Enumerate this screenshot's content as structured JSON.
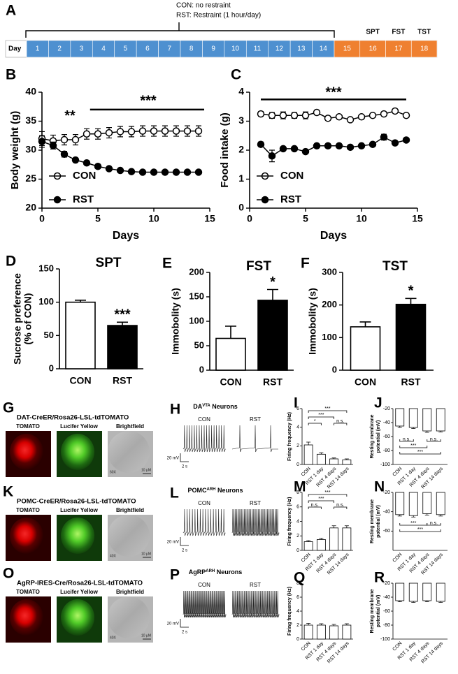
{
  "timeline": {
    "label": "A",
    "legend": [
      "CON: no restraint",
      "RST: Restraint (1 hour/day)"
    ],
    "day_label": "Day",
    "days": [
      1,
      2,
      3,
      4,
      5,
      6,
      7,
      8,
      9,
      10,
      11,
      12,
      13,
      14,
      15,
      16,
      17,
      18
    ],
    "tests": [
      "SPT",
      "FST",
      "TST"
    ]
  },
  "chart_data": [
    {
      "type": "line",
      "label": "B",
      "xlabel": "Days",
      "ylabel": "Body weight (g)",
      "legend": "lower left",
      "x": [
        0,
        1,
        2,
        3,
        4,
        5,
        6,
        7,
        8,
        9,
        10,
        11,
        12,
        13,
        14
      ],
      "xlim": [
        0,
        15
      ],
      "xticks": [
        0,
        5,
        10,
        15
      ],
      "ylim": [
        20,
        40
      ],
      "yticks": [
        20,
        25,
        30,
        35,
        40
      ],
      "series": [
        {
          "name": "CON",
          "marker": "open",
          "color": "#000000",
          "values": [
            32,
            31.6,
            31.8,
            31.8,
            32.8,
            32.8,
            33,
            33.2,
            33.2,
            33.3,
            33.3,
            33.3,
            33.3,
            33.3,
            33.3
          ],
          "errors": [
            1.2,
            1,
            0.9,
            0.9,
            0.9,
            0.9,
            0.9,
            0.9,
            0.9,
            0.9,
            0.9,
            0.9,
            0.9,
            0.9,
            0.9
          ]
        },
        {
          "name": "RST",
          "marker": "filled",
          "color": "#000000",
          "values": [
            31.5,
            30.8,
            29.3,
            28.3,
            27.8,
            27.2,
            26.8,
            26.5,
            26.3,
            26.2,
            26.2,
            26.2,
            26.2,
            26.2,
            26.2
          ],
          "errors": [
            1,
            0.6,
            0.5,
            0.3,
            0.3,
            0.3,
            0.3,
            0.3,
            0.3,
            0.3,
            0.3,
            0.3,
            0.3,
            0.3,
            0.3
          ]
        }
      ],
      "annotations": [
        "**",
        "***"
      ]
    },
    {
      "type": "line",
      "label": "C",
      "xlabel": "Days",
      "ylabel": "Food intake (g)",
      "legend": "lower left",
      "x": [
        1,
        2,
        3,
        4,
        5,
        6,
        7,
        8,
        9,
        10,
        11,
        12,
        13,
        14
      ],
      "xlim": [
        0,
        15
      ],
      "xticks": [
        0,
        5,
        10,
        15
      ],
      "ylim": [
        0,
        4
      ],
      "yticks": [
        0,
        1,
        2,
        3,
        4
      ],
      "series": [
        {
          "name": "CON",
          "marker": "open",
          "color": "#000000",
          "values": [
            3.25,
            3.2,
            3.2,
            3.2,
            3.2,
            3.3,
            3.1,
            3.15,
            3.05,
            3.15,
            3.2,
            3.25,
            3.35,
            3.2
          ],
          "errors": [
            0.08,
            0.1,
            0.12,
            0.1,
            0.12,
            0.08,
            0.05,
            0.05,
            0.05,
            0.05,
            0.05,
            0.05,
            0.05,
            0.05
          ]
        },
        {
          "name": "RST",
          "marker": "filled",
          "color": "#000000",
          "values": [
            2.2,
            1.8,
            2.05,
            2.05,
            1.95,
            2.15,
            2.15,
            2.15,
            2.1,
            2.15,
            2.2,
            2.45,
            2.25,
            2.35
          ],
          "errors": [
            0.08,
            0.2,
            0.05,
            0.05,
            0.05,
            0.05,
            0.05,
            0.05,
            0.05,
            0.05,
            0.05,
            0.1,
            0.05,
            0.05
          ]
        }
      ],
      "annotations": [
        "***"
      ]
    },
    {
      "type": "bar",
      "label": "D",
      "title": "SPT",
      "ylabel": [
        "Sucrose preference",
        "(% of CON)"
      ],
      "categories": [
        "CON",
        "RST"
      ],
      "values": [
        100,
        65
      ],
      "errors": [
        3,
        5
      ],
      "colors": [
        "#ffffff",
        "#000000"
      ],
      "ylim": [
        0,
        150
      ],
      "yticks": [
        0,
        50,
        100,
        150
      ],
      "annotations": [
        "***"
      ]
    },
    {
      "type": "bar",
      "label": "E",
      "title": "FST",
      "ylabel": "Immobolity (s)",
      "categories": [
        "CON",
        "RST"
      ],
      "values": [
        65,
        143
      ],
      "errors": [
        25,
        22
      ],
      "colors": [
        "#ffffff",
        "#000000"
      ],
      "ylim": [
        0,
        200
      ],
      "yticks": [
        0,
        50,
        100,
        150,
        200
      ],
      "annotations": [
        "*"
      ]
    },
    {
      "type": "bar",
      "label": "F",
      "title": "TST",
      "ylabel": "Immobolity (s)",
      "categories": [
        "CON",
        "RST"
      ],
      "values": [
        133,
        202
      ],
      "errors": [
        15,
        18
      ],
      "colors": [
        "#ffffff",
        "#000000"
      ],
      "ylim": [
        0,
        300
      ],
      "yticks": [
        0,
        100,
        200,
        300
      ],
      "annotations": [
        "*"
      ]
    },
    {
      "type": "bar",
      "label": "I",
      "ylabel": "Firing frequency (Hz)",
      "categories": [
        "CON",
        "RST 1 day",
        "RST 4 days",
        "RST 14 days"
      ],
      "values": [
        2.1,
        1.1,
        0.6,
        0.5
      ],
      "errors": [
        0.3,
        0.15,
        0.1,
        0.1
      ],
      "colors": [
        "#ffffff",
        "#ffffff",
        "#ffffff",
        "#ffffff"
      ],
      "ylim": [
        0,
        6
      ],
      "yticks": [
        0,
        2,
        4,
        6
      ],
      "annotations": [
        "***",
        "***",
        "*",
        "n.s."
      ]
    },
    {
      "type": "bar",
      "label": "J",
      "ylabel": [
        "Resting membrane",
        "potential (mV)"
      ],
      "categories": [
        "CON",
        "RST 1 day",
        "RST 4 days",
        "RST 14 days"
      ],
      "values": [
        -45,
        -47,
        -52,
        -52
      ],
      "errors": [
        2,
        1.5,
        2,
        1.5
      ],
      "colors": [
        "#ffffff",
        "#ffffff",
        "#ffffff",
        "#ffffff"
      ],
      "ylim": [
        -100,
        -20
      ],
      "yticks": [
        -20,
        -40,
        -60,
        -80,
        -100
      ],
      "annotations": [
        "n.s.",
        "n.s.",
        "***",
        "***"
      ]
    },
    {
      "type": "bar",
      "label": "M",
      "ylabel": "Firing frequency (Hz)",
      "categories": [
        "CON",
        "RST 1 day",
        "RST 4 days",
        "RST 14 days"
      ],
      "values": [
        1.2,
        1.5,
        3.1,
        3.1
      ],
      "errors": [
        0.15,
        0.15,
        0.3,
        0.3
      ],
      "colors": [
        "#ffffff",
        "#ffffff",
        "#ffffff",
        "#ffffff"
      ],
      "ylim": [
        0,
        8
      ],
      "yticks": [
        0,
        2,
        4,
        6,
        8
      ],
      "annotations": [
        "***",
        "***",
        "n.s.",
        "n.s."
      ]
    },
    {
      "type": "bar",
      "label": "N",
      "ylabel": [
        "Resting membrane",
        "potential (mV)"
      ],
      "categories": [
        "CON",
        "RST 1 day",
        "RST 4 days",
        "RST 14 days"
      ],
      "values": [
        -43,
        -44,
        -42,
        -43
      ],
      "errors": [
        1.5,
        1.5,
        1.5,
        1.5
      ],
      "colors": [
        "#ffffff",
        "#ffffff",
        "#ffffff",
        "#ffffff"
      ],
      "ylim": [
        -80,
        -20
      ],
      "yticks": [
        -20,
        -40,
        -60
      ],
      "annotations": [
        "***",
        "n.s.",
        "***"
      ]
    },
    {
      "type": "bar",
      "label": "Q",
      "ylabel": "Firing frequency (Hz)",
      "categories": [
        "CON",
        "RST 1 day",
        "RST 4 days",
        "RST 14 days"
      ],
      "values": [
        2.0,
        2.0,
        1.9,
        2.0
      ],
      "errors": [
        0.25,
        0.2,
        0.2,
        0.2
      ],
      "colors": [
        "#ffffff",
        "#ffffff",
        "#ffffff",
        "#ffffff"
      ],
      "ylim": [
        0,
        8
      ],
      "yticks": [
        0,
        2,
        4,
        6,
        8
      ]
    },
    {
      "type": "bar",
      "label": "R",
      "ylabel": [
        "Resting membrane",
        "potential (mV)"
      ],
      "categories": [
        "CON",
        "RST 1 day",
        "RST 4 days",
        "RST 14 days"
      ],
      "values": [
        -45,
        -46,
        -45,
        -46
      ],
      "errors": [
        1.5,
        1.5,
        1.5,
        1.5
      ],
      "colors": [
        "#ffffff",
        "#ffffff",
        "#ffffff",
        "#ffffff"
      ],
      "ylim": [
        -100,
        -20
      ],
      "yticks": [
        -20,
        -40,
        -60,
        -80,
        -100
      ]
    }
  ],
  "image_panels": [
    {
      "label": "G",
      "title": "DAT-CreER/Rosa26-LSL-tdTOMATO",
      "images": [
        "TOMATO",
        "Lucifer Yellow",
        "Brightfield"
      ],
      "magnification": "60X",
      "scale": "10 μM"
    },
    {
      "label": "K",
      "title": "POMC-CreER/Rosa26-LSL-tdTOMATO",
      "images": [
        "TOMATO",
        "Lucifer Yellow",
        "Brightfield"
      ],
      "magnification": "40X",
      "scale": "10 μM"
    },
    {
      "label": "O",
      "title": "AgRP-IRES-Cre/Rosa26-LSL-tdTOMATO",
      "images": [
        "TOMATO",
        "Lucifer Yellow",
        "Brightfield"
      ],
      "magnification": "40X",
      "scale": "10 μM"
    }
  ],
  "traces": [
    {
      "label": "H",
      "title": [
        "DA",
        "VTA",
        " Neurons"
      ],
      "conditions": [
        "CON",
        "RST"
      ],
      "scale_v": "20 mV",
      "scale_t": "2 s"
    },
    {
      "label": "L",
      "title": [
        "POMC",
        "ARH",
        " Neurons"
      ],
      "conditions": [
        "CON",
        "RST"
      ],
      "scale_v": "20 mV",
      "scale_t": "2 s"
    },
    {
      "label": "P",
      "title": [
        "AgRP",
        "ARH",
        " Neurons"
      ],
      "conditions": [
        "CON",
        "RST"
      ],
      "scale_v": "20 mV",
      "scale_t": "2 s"
    }
  ]
}
